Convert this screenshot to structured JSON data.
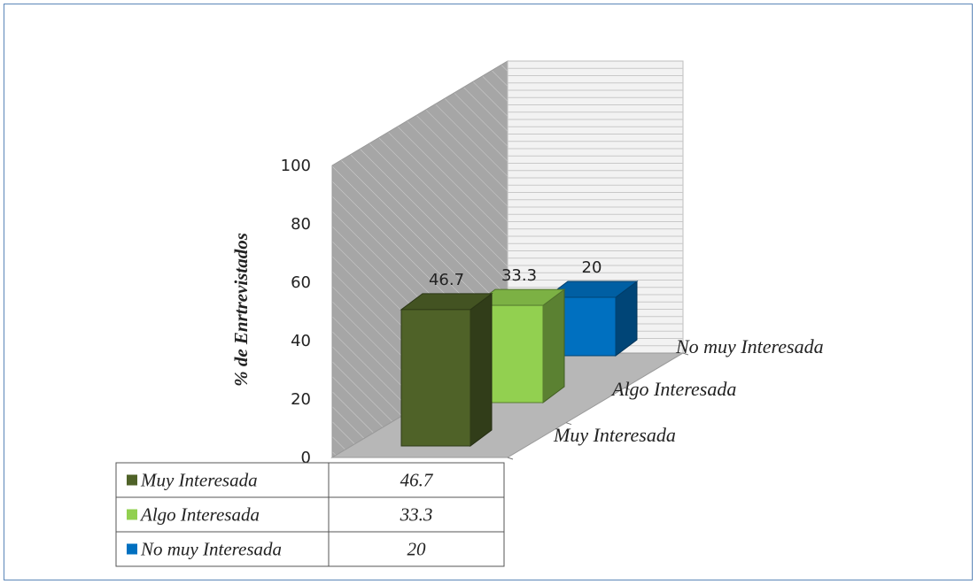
{
  "chart_data": {
    "type": "bar",
    "style": "3d-column",
    "title": "",
    "ylabel": "% de Enrtrevistados",
    "ylim": [
      0,
      100
    ],
    "yticks": [
      0,
      20,
      40,
      60,
      80,
      100
    ],
    "categories": [
      "Muy Interesada",
      "Algo Interesada",
      "No muy Interesada"
    ],
    "values": [
      46.7,
      33.3,
      20
    ],
    "colors": [
      "#4f6228",
      "#92d050",
      "#0070c0"
    ],
    "data_labels": [
      "46.7",
      "33.3",
      "20"
    ],
    "gridlines": true,
    "legend": "data-table-bottom-left"
  }
}
